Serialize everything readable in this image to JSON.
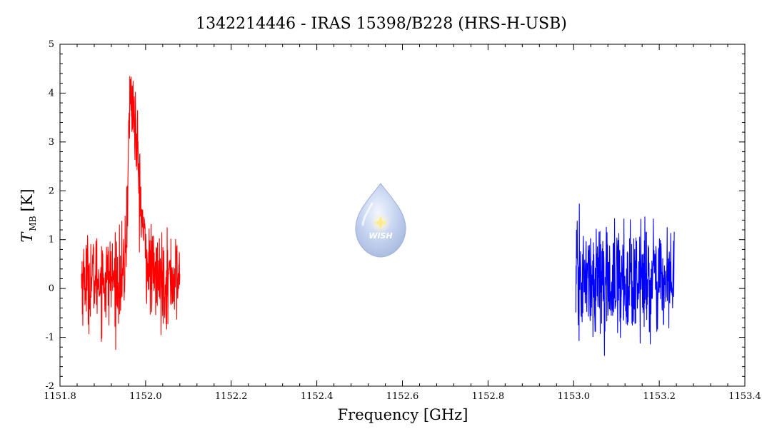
{
  "chart_data": {
    "type": "line",
    "title": "1342214446 - IRAS 15398/B228 (HRS-H-USB)",
    "xlabel": "Frequency [GHz]",
    "ylabel": {
      "symbol": "T",
      "subscript": "MB",
      "unit": "[K]"
    },
    "xlim": [
      1151.8,
      1153.4
    ],
    "ylim": [
      -2,
      5
    ],
    "x_ticks": [
      1151.8,
      1152.0,
      1152.2,
      1152.4,
      1152.6,
      1152.8,
      1153.0,
      1153.2,
      1153.4
    ],
    "x_tick_labels": [
      "1151.8",
      "1152.0",
      "1152.2",
      "1152.4",
      "1152.6",
      "1152.8",
      "1153.0",
      "1153.2",
      "1153.4"
    ],
    "y_ticks": [
      -2,
      -1,
      0,
      1,
      2,
      3,
      4,
      5
    ],
    "y_tick_labels": [
      "-2",
      "-1",
      "0",
      "1",
      "2",
      "3",
      "4",
      "5"
    ],
    "grid": false,
    "legend": "none",
    "series": [
      {
        "color": "#ff0000",
        "x_range": [
          1151.85,
          1152.08
        ],
        "baseline": 0.2,
        "noise_sigma": 0.45,
        "min": -1.25,
        "max": 4.55,
        "peak": {
          "x": 1151.965,
          "y": 4.55,
          "width_ghz": 0.012
        }
      },
      {
        "color": "#0000ff",
        "x_range": [
          1153.005,
          1153.235
        ],
        "baseline": 0.15,
        "noise_sigma": 0.55,
        "min": -1.65,
        "max": 1.9
      }
    ]
  },
  "watermark": {
    "text": "WISH",
    "color": "#9db4e0"
  }
}
